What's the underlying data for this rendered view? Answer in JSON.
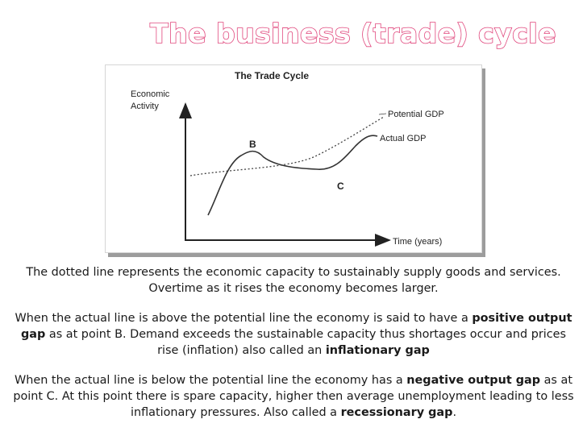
{
  "slide": {
    "title": "The business (trade) cycle"
  },
  "chart_data": {
    "type": "line",
    "title": "The Trade Cycle",
    "ylabel_line1": "Economic",
    "ylabel_line2": "Activity",
    "xlabel": "Time (years)",
    "series": [
      {
        "name": "Potential GDP",
        "style": "dotted"
      },
      {
        "name": "Actual GDP",
        "style": "solid"
      }
    ],
    "point_labels": [
      "B",
      "C"
    ],
    "colors": {
      "line": "#333333",
      "axis": "#222222",
      "title": "#e0457b"
    }
  },
  "paragraphs": {
    "p1": "The dotted line represents the economic capacity to sustainably supply goods and services. Overtime as it rises the economy becomes larger.",
    "p2_a": "When the actual line is above the potential line the economy is said to have a ",
    "p2_b": "positive output gap",
    "p2_c": " as at point B. Demand exceeds the sustainable capacity thus shortages occur and prices rise (inflation) also called an ",
    "p2_d": "inflationary gap",
    "p3_a": "When the actual line is below the potential line the economy has a ",
    "p3_b": "negative output gap",
    "p3_c": " as at point C. At this point there is spare capacity, higher then average unemployment leading to less inflationary pressures.  Also called a ",
    "p3_d": "recessionary gap",
    "p3_e": "."
  }
}
